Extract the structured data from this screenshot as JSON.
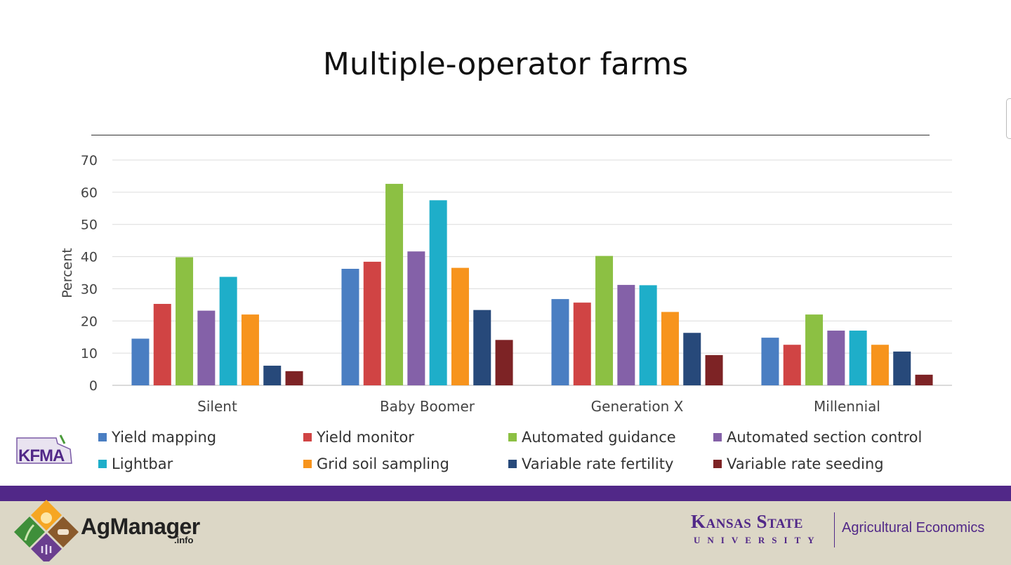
{
  "chart_data": {
    "type": "bar",
    "title": "Multiple-operator farms",
    "ylabel": "Percent",
    "xlabel": "",
    "ylim": [
      0,
      70
    ],
    "yticks": [
      0,
      10,
      20,
      30,
      40,
      50,
      60,
      70
    ],
    "grid": true,
    "legend_position": "bottom",
    "categories": [
      "Silent",
      "Baby Boomer",
      "Generation X",
      "Millennial"
    ],
    "series": [
      {
        "name": "Yield mapping",
        "color": "#4a7ec2",
        "values": [
          14.5,
          36.2,
          26.8,
          14.8
        ]
      },
      {
        "name": "Yield monitor",
        "color": "#d04444",
        "values": [
          25.3,
          38.4,
          25.7,
          12.6
        ]
      },
      {
        "name": "Automated guidance",
        "color": "#8cc043",
        "values": [
          39.8,
          62.6,
          40.2,
          22.0
        ]
      },
      {
        "name": "Automated section control",
        "color": "#8461a8",
        "values": [
          23.2,
          41.6,
          31.2,
          17.0
        ]
      },
      {
        "name": "Lightbar",
        "color": "#1eaec9",
        "values": [
          33.7,
          57.5,
          31.1,
          17.0
        ]
      },
      {
        "name": "Grid soil sampling",
        "color": "#f7941d",
        "values": [
          22.0,
          36.5,
          22.8,
          12.6
        ]
      },
      {
        "name": "Variable rate fertility",
        "color": "#27497a",
        "values": [
          6.1,
          23.4,
          16.3,
          10.5
        ]
      },
      {
        "name": "Variable rate seeding",
        "color": "#7d2325",
        "values": [
          4.4,
          14.1,
          9.4,
          3.3
        ]
      }
    ]
  },
  "logos": {
    "kfma": "KFMA",
    "agmanager_name": "AgManager",
    "agmanager_sub": ".info",
    "ksu_name": "Kansas State",
    "ksu_sub": "UNIVERSITY",
    "ksu_dept": "Agricultural Economics"
  },
  "colors": {
    "purple_band": "#512888",
    "footer_bg": "#dcd7c6"
  }
}
